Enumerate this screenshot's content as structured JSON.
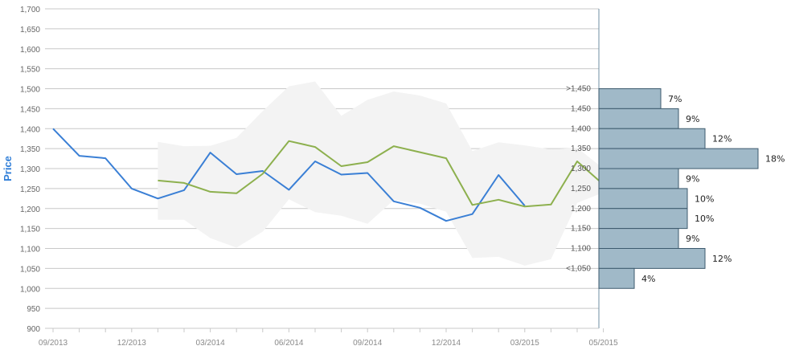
{
  "chart_data": {
    "type": "line",
    "ylabel": "Price",
    "ylim": [
      900,
      1700
    ],
    "yticks": [
      "900",
      "950",
      "1,000",
      "1,050",
      "1,100",
      "1,150",
      "1,200",
      "1,250",
      "1,300",
      "1,350",
      "1,400",
      "1,450",
      "1,500",
      "1,550",
      "1,600",
      "1,650",
      "1,700"
    ],
    "ytick_values": [
      900,
      950,
      1000,
      1050,
      1100,
      1150,
      1200,
      1250,
      1300,
      1350,
      1400,
      1450,
      1500,
      1550,
      1600,
      1650,
      1700
    ],
    "xticks": [
      "09/2013",
      "12/2013",
      "03/2014",
      "06/2014",
      "09/2014",
      "12/2014",
      "03/2015",
      "05/2015"
    ],
    "xtick_positions": [
      0,
      3,
      6,
      9,
      12,
      15,
      18,
      21
    ],
    "grid": true,
    "series": [
      {
        "color": "#3a7fd5",
        "x": [
          0,
          1,
          2,
          3,
          4,
          5,
          6,
          7,
          8,
          9,
          10,
          11,
          12,
          13,
          14,
          15,
          16,
          17,
          18
        ],
        "values": [
          1400,
          1332,
          1326,
          1250,
          1225,
          1246,
          1340,
          1286,
          1294,
          1247,
          1318,
          1285,
          1289,
          1218,
          1202,
          1169,
          1186,
          1284,
          1207
        ]
      },
      {
        "color": "#8db04e",
        "x": [
          4,
          5,
          6,
          7,
          8,
          9,
          10,
          11,
          12,
          13,
          14,
          15,
          16,
          17,
          18,
          19,
          20,
          21
        ],
        "values": [
          1270,
          1264,
          1242,
          1238,
          1287,
          1369,
          1354,
          1306,
          1316,
          1356,
          1341,
          1326,
          1209,
          1222,
          1205,
          1210,
          1318,
          1260
        ]
      }
    ],
    "band": {
      "color": "#f3f3f3",
      "x": [
        4,
        5,
        6,
        7,
        8,
        9,
        10,
        11,
        12,
        13,
        14,
        15,
        16,
        17,
        18,
        19,
        20,
        21
      ],
      "upper": [
        1367,
        1356,
        1357,
        1377,
        1444,
        1506,
        1518,
        1432,
        1472,
        1493,
        1483,
        1463,
        1344,
        1366,
        1358,
        1348,
        1352,
        1300
      ],
      "lower": [
        1172,
        1172,
        1126,
        1102,
        1142,
        1223,
        1191,
        1182,
        1162,
        1221,
        1212,
        1192,
        1076,
        1079,
        1057,
        1073,
        1214,
        1240
      ]
    },
    "histogram": {
      "bar_color": "#a0b9c8",
      "border_color": "#3d5a6e",
      "bins": [
        {
          "label": ">1,450",
          "low": 1450,
          "high": 1500,
          "percent": 7,
          "percent_label": "7%"
        },
        {
          "label": "1,450",
          "low": 1400,
          "high": 1450,
          "percent": 9,
          "percent_label": "9%"
        },
        {
          "label": "1,400",
          "low": 1350,
          "high": 1400,
          "percent": 12,
          "percent_label": "12%"
        },
        {
          "label": "1,350",
          "low": 1300,
          "high": 1350,
          "percent": 18,
          "percent_label": "18%"
        },
        {
          "label": "1,300",
          "low": 1250,
          "high": 1300,
          "percent": 9,
          "percent_label": "9%"
        },
        {
          "label": "1,250",
          "low": 1200,
          "high": 1250,
          "percent": 10,
          "percent_label": "10%"
        },
        {
          "label": "1,200",
          "low": 1150,
          "high": 1200,
          "percent": 10,
          "percent_label": "10%"
        },
        {
          "label": "1,150",
          "low": 1100,
          "high": 1150,
          "percent": 9,
          "percent_label": "9%"
        },
        {
          "label": "1,100",
          "low": 1050,
          "high": 1100,
          "percent": 12,
          "percent_label": "12%"
        },
        {
          "label": "<1,050",
          "low": 1000,
          "high": 1050,
          "percent": 4,
          "percent_label": "4%"
        }
      ]
    }
  }
}
